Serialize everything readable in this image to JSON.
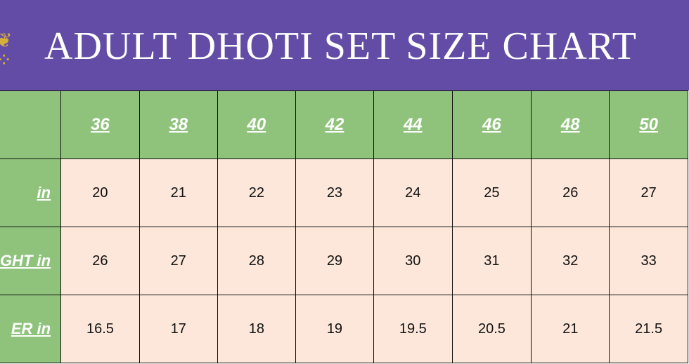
{
  "title": "ADULT DHOTI SET SIZE CHART",
  "colors": {
    "header_bg": "#634ca5",
    "label_bg": "#8fc37c",
    "cell_bg": "#fce7da"
  },
  "sizes": [
    "36",
    "38",
    "40",
    "42",
    "44",
    "46",
    "48",
    "50"
  ],
  "rows": [
    {
      "label": "in",
      "values": [
        "20",
        "21",
        "22",
        "23",
        "24",
        "25",
        "26",
        "27"
      ]
    },
    {
      "label": "GHT  in",
      "values": [
        "26",
        "27",
        "28",
        "29",
        "30",
        "31",
        "32",
        "33"
      ]
    },
    {
      "label": "ER in",
      "values": [
        "16.5",
        "17",
        "18",
        "19",
        "19.5",
        "20.5",
        "21",
        "21.5"
      ]
    }
  ]
}
